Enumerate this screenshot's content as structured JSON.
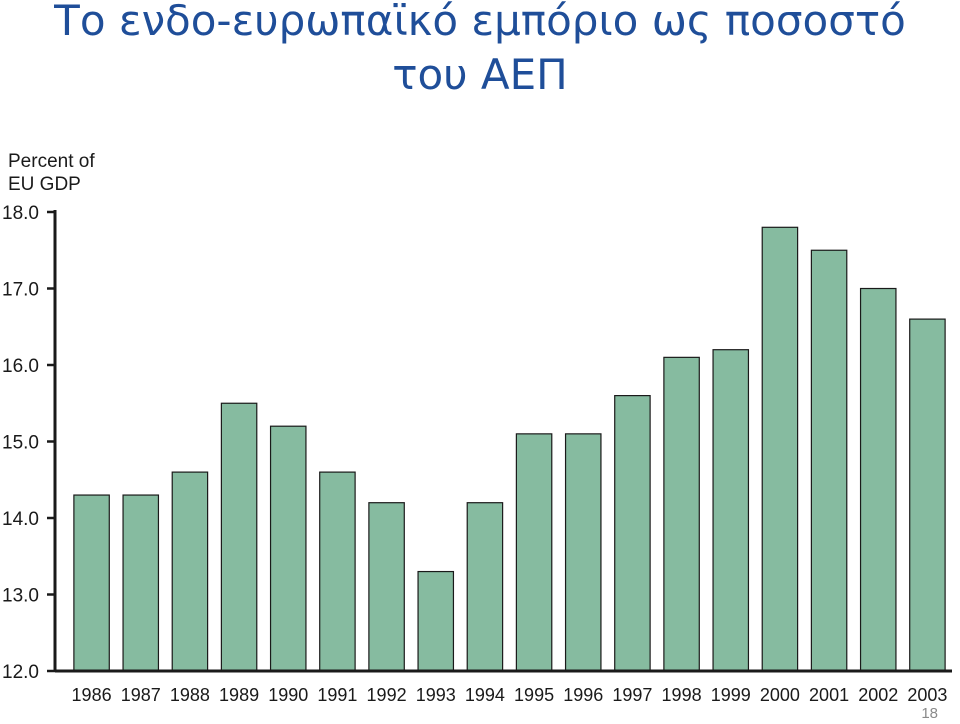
{
  "slide": {
    "title_line1": "Το ενδο-ευρωπαϊκό εμπόριο ως ποσοστό",
    "title_line2": "του ΑΕΠ",
    "page_number": "18"
  },
  "chart_data": {
    "type": "bar",
    "title": "",
    "ylabel_line1": "Percent of",
    "ylabel_line2": "EU GDP",
    "xlabel": "",
    "ylim": [
      12.0,
      18.0
    ],
    "yticks": [
      "18.0",
      "17.0",
      "16.0",
      "15.0",
      "14.0",
      "13.0",
      "12.0"
    ],
    "categories": [
      "1986",
      "1987",
      "1988",
      "1989",
      "1990",
      "1991",
      "1992",
      "1993",
      "1994",
      "1995",
      "1996",
      "1997",
      "1998",
      "1999",
      "2000",
      "2001",
      "2002",
      "2003"
    ],
    "values": [
      14.3,
      14.3,
      14.6,
      15.5,
      15.2,
      14.6,
      14.2,
      13.3,
      14.2,
      15.1,
      15.1,
      15.6,
      16.1,
      16.2,
      17.8,
      17.5,
      17.0,
      16.6
    ],
    "bar_color": "#86bba0",
    "bar_edge_color": "#1a1a1a",
    "grid": false,
    "legend": "none"
  }
}
